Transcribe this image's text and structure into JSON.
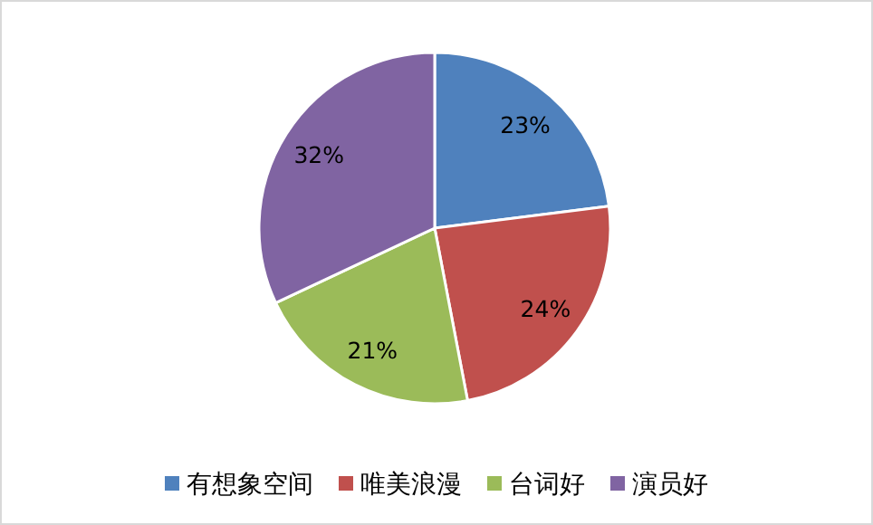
{
  "chart_data": {
    "type": "pie",
    "categories": [
      "有想象空间",
      "唯美浪漫",
      "台词好",
      "演员好"
    ],
    "values": [
      23,
      24,
      21,
      32
    ],
    "colors": [
      "#4f81bd",
      "#c0504d",
      "#9bbb59",
      "#8064a2"
    ],
    "value_labels": [
      "23%",
      "24%",
      "21%",
      "32%"
    ],
    "legend": "bottom"
  }
}
